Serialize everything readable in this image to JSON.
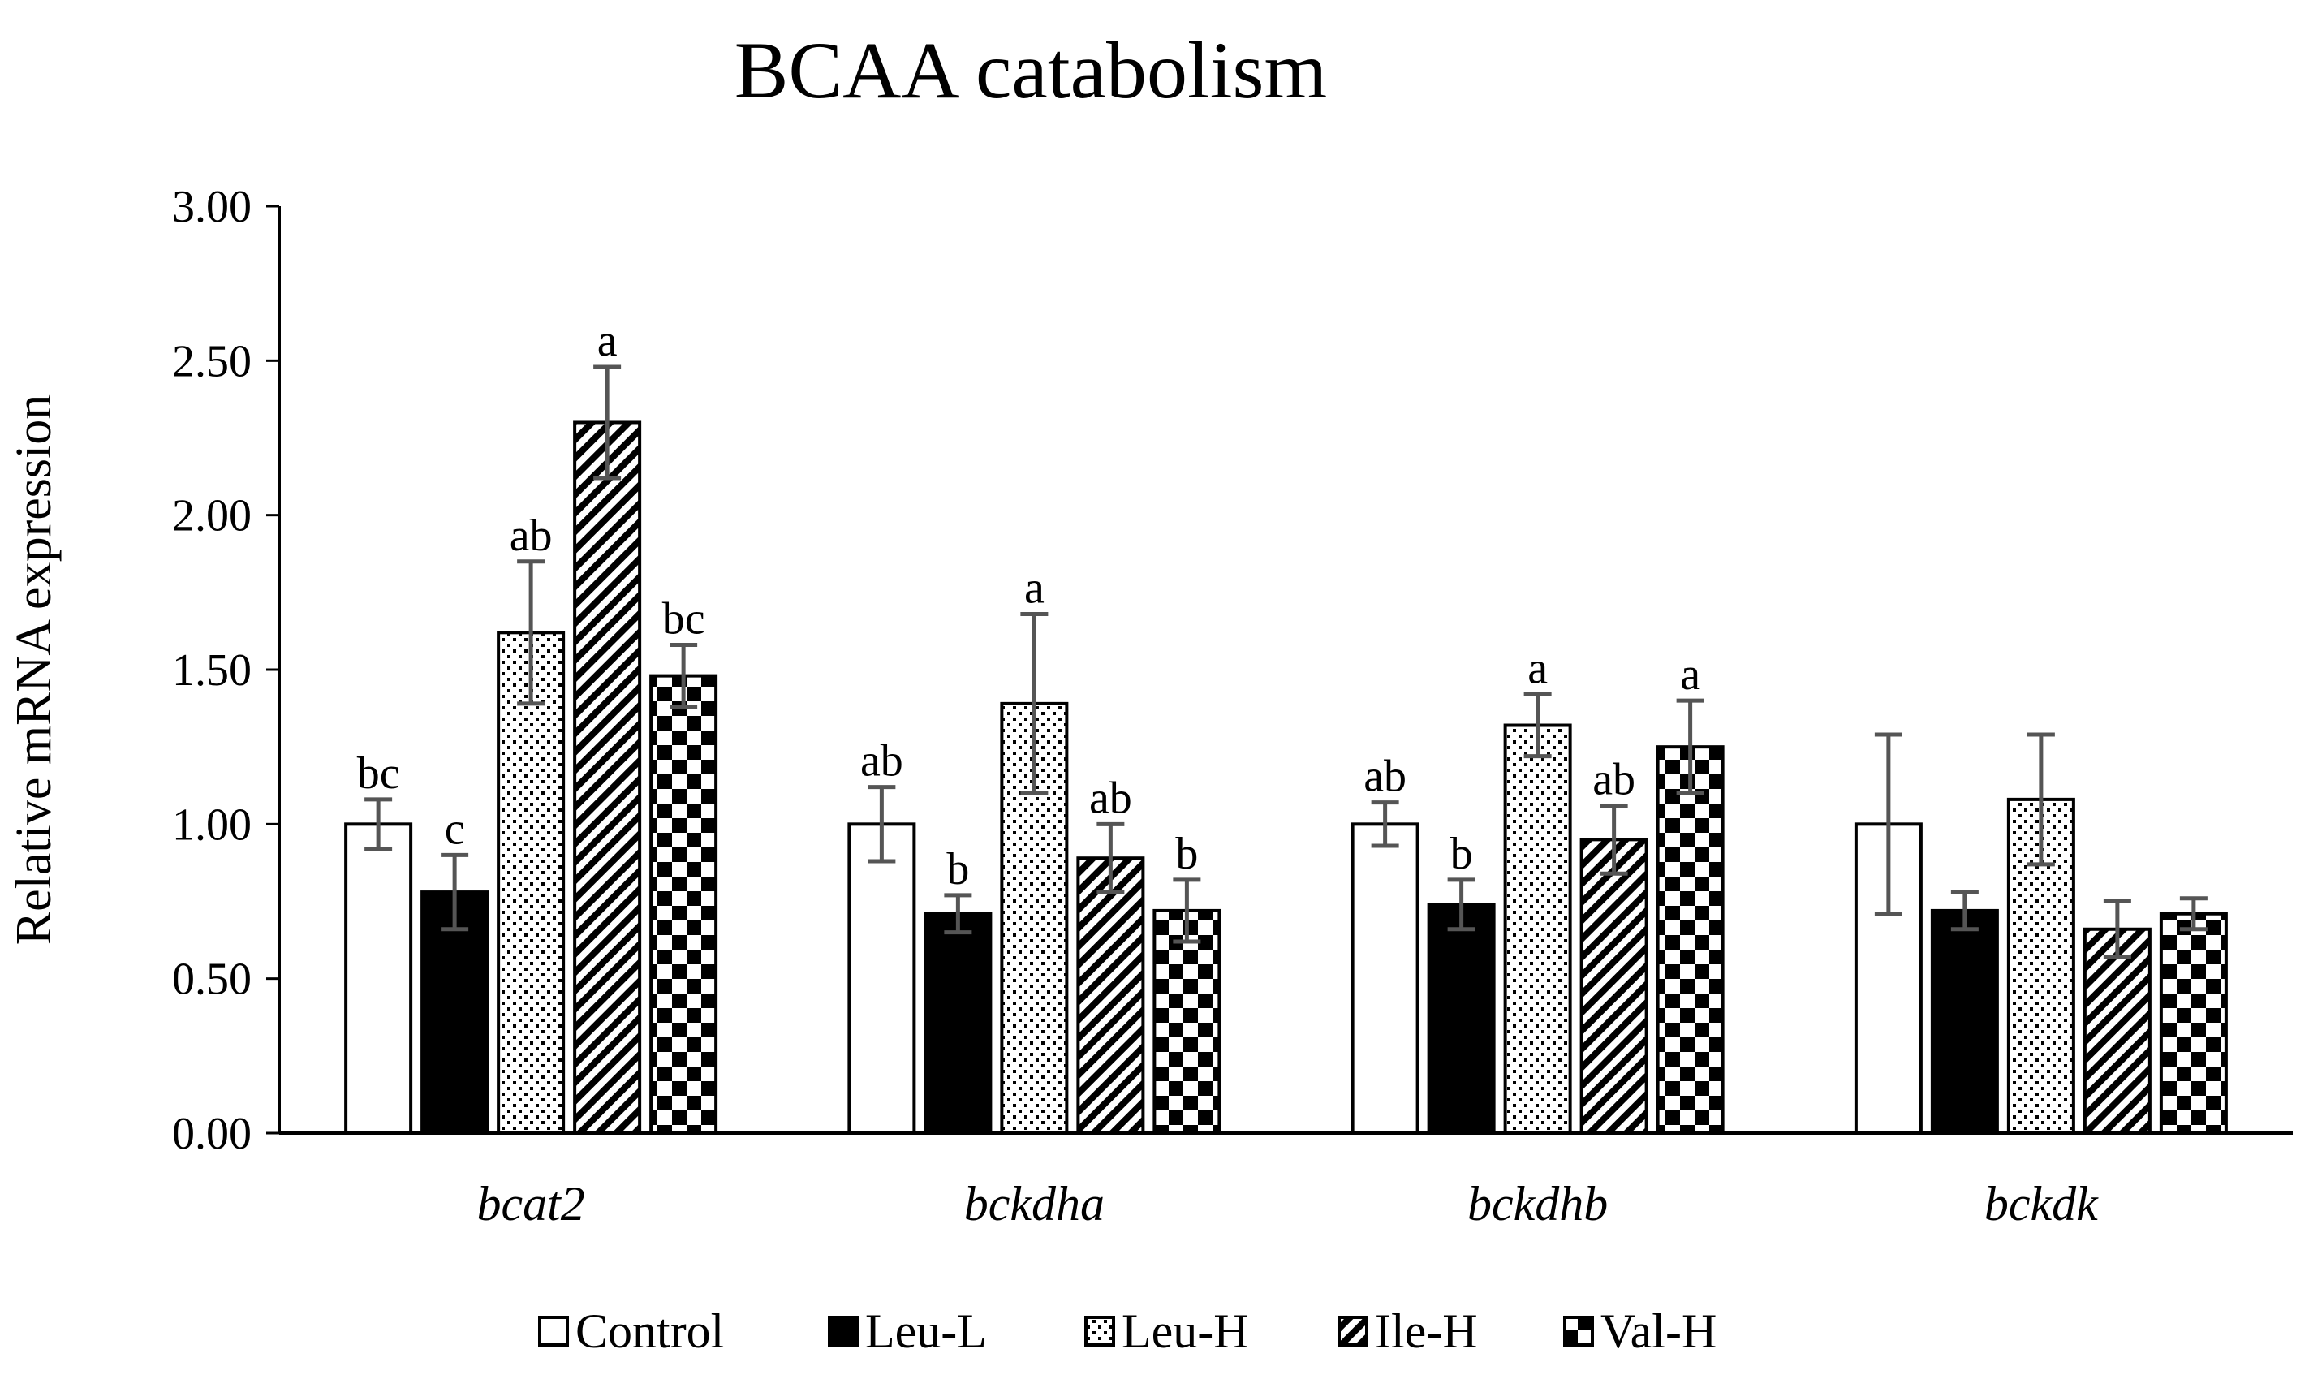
{
  "chart_data": {
    "type": "bar",
    "title": "BCAA catabolism",
    "xlabel": "",
    "ylabel": "Relative mRNA expression",
    "ylim": [
      0,
      3
    ],
    "yticks": [
      "0.00",
      "0.50",
      "1.00",
      "1.50",
      "2.00",
      "2.50",
      "3.00"
    ],
    "categories": [
      "bcat2",
      "bckdha",
      "bckdhb",
      "bckdk"
    ],
    "legend_position": "bottom",
    "series": [
      {
        "name": "Control",
        "pattern": "white",
        "values": [
          1.0,
          1.0,
          1.0,
          1.0
        ],
        "errors": [
          0.08,
          0.12,
          0.07,
          0.29
        ],
        "letters": [
          "bc",
          "ab",
          "ab",
          ""
        ]
      },
      {
        "name": "Leu-L",
        "pattern": "solid",
        "values": [
          0.78,
          0.71,
          0.74,
          0.72
        ],
        "errors": [
          0.12,
          0.06,
          0.08,
          0.06
        ],
        "letters": [
          "c",
          "b",
          "b",
          ""
        ]
      },
      {
        "name": "Leu-H",
        "pattern": "dots",
        "values": [
          1.62,
          1.39,
          1.32,
          1.08
        ],
        "errors": [
          0.23,
          0.29,
          0.1,
          0.21
        ],
        "letters": [
          "ab",
          "a",
          "a",
          ""
        ]
      },
      {
        "name": "Ile-H",
        "pattern": "diagonal",
        "values": [
          2.3,
          0.89,
          0.95,
          0.66
        ],
        "errors": [
          0.18,
          0.11,
          0.11,
          0.09
        ],
        "letters": [
          "a",
          "ab",
          "ab",
          ""
        ]
      },
      {
        "name": "Val-H",
        "pattern": "checker",
        "values": [
          1.48,
          0.72,
          1.25,
          0.71
        ],
        "errors": [
          0.1,
          0.1,
          0.15,
          0.05
        ],
        "letters": [
          "bc",
          "b",
          "a",
          ""
        ]
      }
    ]
  }
}
